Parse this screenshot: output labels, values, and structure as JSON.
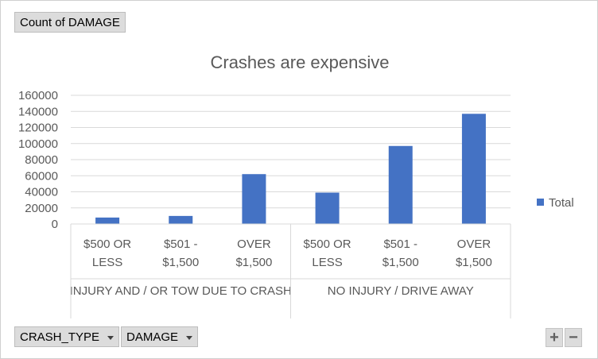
{
  "value_field": {
    "label": "Count of DAMAGE"
  },
  "axis_fields": [
    {
      "label": "CRASH_TYPE"
    },
    {
      "label": "DAMAGE"
    }
  ],
  "zoom": {
    "plus": "+",
    "minus": "−"
  },
  "colors": {
    "bar": "#4472c4",
    "grid": "#d9d9d9",
    "text": "#595959",
    "title": "#595959"
  },
  "chart_data": {
    "type": "bar",
    "title": "Crashes are expensive",
    "xlabel": "",
    "ylabel": "",
    "ylim": [
      0,
      160000
    ],
    "yticks": [
      0,
      20000,
      40000,
      60000,
      80000,
      100000,
      120000,
      140000,
      160000
    ],
    "grid": true,
    "legend_position": "right",
    "groups": [
      {
        "label": "INJURY AND / OR TOW DUE TO CRASH",
        "categories": [
          [
            "$500 OR",
            "LESS"
          ],
          [
            "$501 -",
            "$1,500"
          ],
          [
            "OVER",
            "$1,500"
          ]
        ]
      },
      {
        "label": "NO INJURY / DRIVE AWAY",
        "categories": [
          [
            "$500 OR",
            "LESS"
          ],
          [
            "$501 -",
            "$1,500"
          ],
          [
            "OVER",
            "$1,500"
          ]
        ]
      }
    ],
    "series": [
      {
        "name": "Total",
        "values": [
          8000,
          10000,
          62000,
          39000,
          97000,
          137000
        ]
      }
    ]
  }
}
